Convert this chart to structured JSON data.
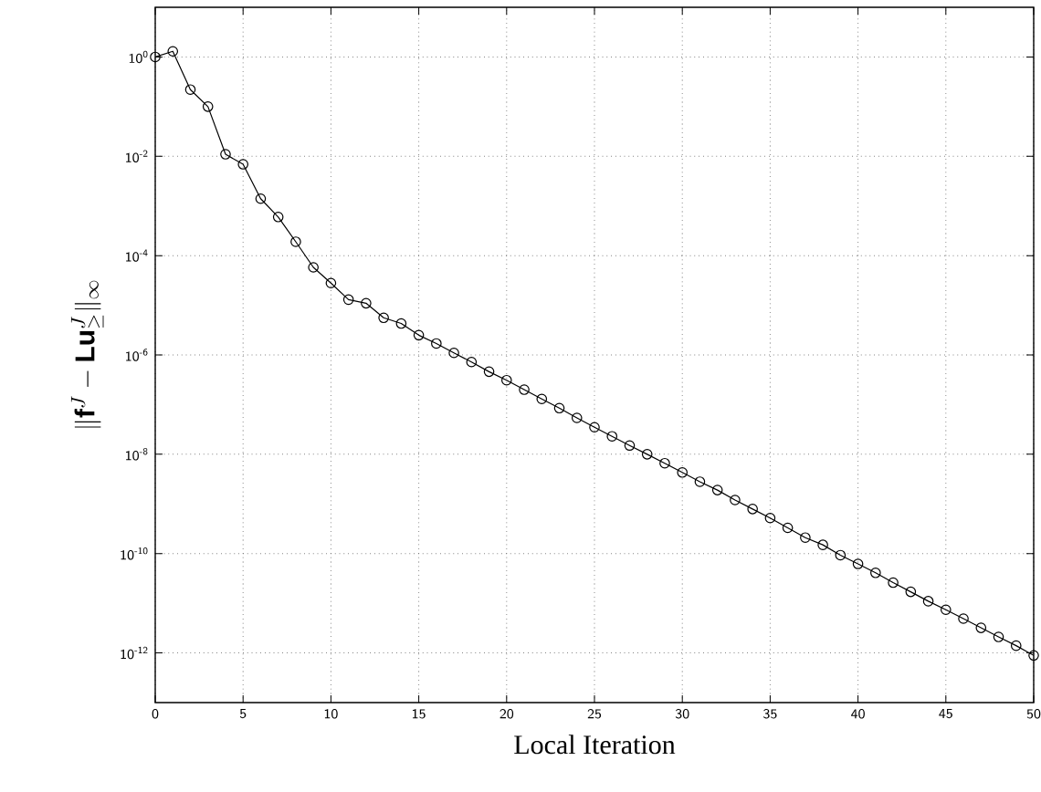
{
  "chart_data": {
    "type": "line",
    "xlabel": "Local Iteration",
    "ylabel": "\\|\\mathbf{f}^J - \\mathbf{L}\\mathbf{u}^J_{\\geq}\\|_\\infty",
    "x": [
      0,
      1,
      2,
      3,
      4,
      5,
      6,
      7,
      8,
      9,
      10,
      11,
      12,
      13,
      14,
      15,
      16,
      17,
      18,
      19,
      20,
      21,
      22,
      23,
      24,
      25,
      26,
      27,
      28,
      29,
      30,
      31,
      32,
      33,
      34,
      35,
      36,
      37,
      38,
      39,
      40,
      41,
      42,
      43,
      44,
      45,
      46,
      47,
      48,
      49,
      50
    ],
    "series": [
      {
        "color": "#000000",
        "values": [
          1,
          1.3,
          0.22,
          0.1,
          0.011,
          0.0069,
          0.0014,
          0.0006,
          0.00019,
          5.8e-05,
          2.8e-05,
          1.3e-05,
          1.1e-05,
          5.6e-06,
          4.3e-06,
          2.5e-06,
          1.7e-06,
          1.1e-06,
          7.2e-07,
          4.6e-07,
          3.1e-07,
          2e-07,
          1.3e-07,
          8.5e-08,
          5.4e-08,
          3.5e-08,
          2.3e-08,
          1.5e-08,
          1e-08,
          6.6e-09,
          4.3e-09,
          2.8e-09,
          1.9e-09,
          1.2e-09,
          7.9e-10,
          5.2e-10,
          3.3e-10,
          2.1e-10,
          1.5e-10,
          9.3e-11,
          6.2e-11,
          4.1e-11,
          2.6e-11,
          1.7e-11,
          1.1e-11,
          7.4e-12,
          4.9e-12,
          3.2e-12,
          2.1e-12,
          1.4e-12,
          8.9e-13
        ]
      }
    ],
    "xlim": [
      0,
      50
    ],
    "xticks": [
      0,
      5,
      10,
      15,
      20,
      25,
      30,
      35,
      40,
      45,
      50
    ],
    "ylim": [
      1e-13,
      10
    ],
    "yticks": [
      {
        "value": 1,
        "label": "10$^{0}$"
      },
      {
        "value": 0.01,
        "label": "10$^{-2}$"
      },
      {
        "value": 0.0001,
        "label": "10$^{-4}$"
      },
      {
        "value": 1e-06,
        "label": "10$^{-6}$"
      },
      {
        "value": 1e-08,
        "label": "10$^{-8}$"
      },
      {
        "value": 1e-10,
        "label": "10$^{-10}$"
      },
      {
        "value": 1e-12,
        "label": "10$^{-12}$"
      }
    ],
    "log": "y",
    "grid": true,
    "marker": "circle",
    "line_style": "solid"
  }
}
